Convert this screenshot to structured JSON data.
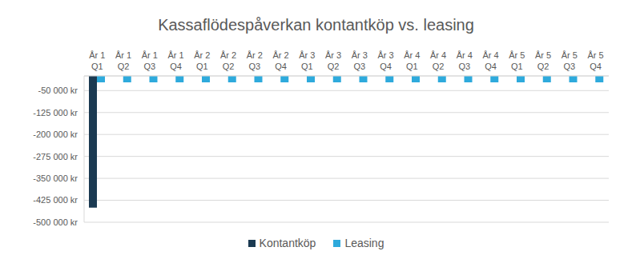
{
  "chart_data": {
    "type": "bar",
    "title": "Kassaflödespåverkan kontantköp vs. leasing",
    "categories": [
      "År 1 Q1",
      "År 1 Q2",
      "År 1 Q3",
      "År 1 Q4",
      "År 2 Q1",
      "År 2 Q2",
      "År 2 Q3",
      "År 2 Q4",
      "År 3 Q1",
      "År 3 Q2",
      "År 3 Q3",
      "År 3 Q4",
      "År 4 Q1",
      "År 4 Q2",
      "År 4 Q3",
      "År 4 Q4",
      "År 5 Q1",
      "År 5 Q2",
      "År 5 Q3",
      "År 5 Q4"
    ],
    "series": [
      {
        "name": "Kontantköp",
        "color": "#1b3a52",
        "values": [
          -450000,
          0,
          0,
          0,
          0,
          0,
          0,
          0,
          0,
          0,
          0,
          0,
          0,
          0,
          0,
          0,
          0,
          0,
          0,
          0
        ]
      },
      {
        "name": "Leasing",
        "color": "#2eaadc",
        "values": [
          -22000,
          -22000,
          -22000,
          -22000,
          -22000,
          -22000,
          -22000,
          -22000,
          -22000,
          -22000,
          -22000,
          -22000,
          -22000,
          -22000,
          -22000,
          -22000,
          -22000,
          -22000,
          -22000,
          -22000
        ]
      }
    ],
    "ylim": [
      -500000,
      0
    ],
    "yticks": [
      {
        "value": -50000,
        "label": "-50 000 kr"
      },
      {
        "value": -125000,
        "label": "-125 000 kr"
      },
      {
        "value": -200000,
        "label": "-200 000 kr"
      },
      {
        "value": -275000,
        "label": "-275 000 kr"
      },
      {
        "value": -350000,
        "label": "-350 000 kr"
      },
      {
        "value": -425000,
        "label": "-425 000 kr"
      },
      {
        "value": -500000,
        "label": "-500 000 kr"
      }
    ],
    "grid": true,
    "legend": "bottom"
  }
}
